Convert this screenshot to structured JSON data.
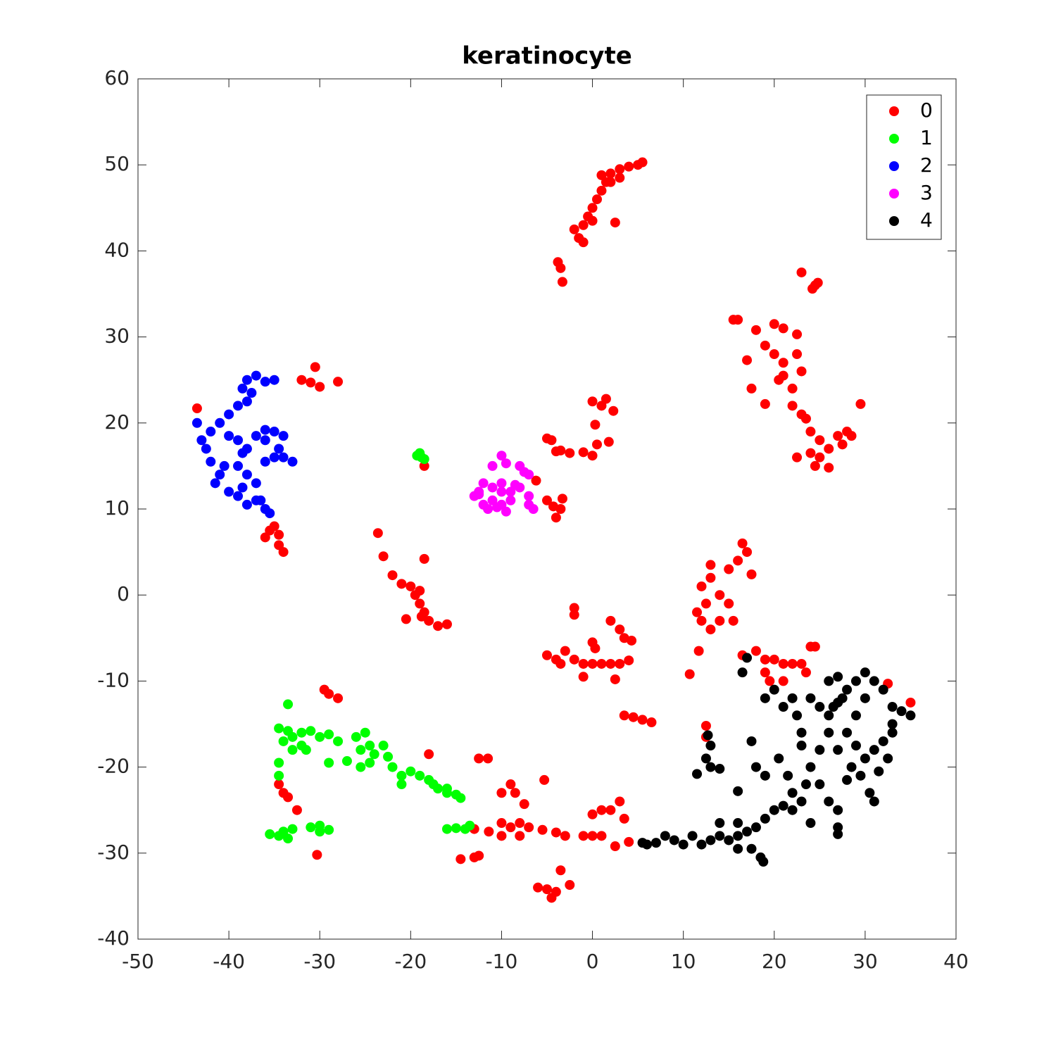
{
  "chart_data": {
    "type": "scatter",
    "title": "keratinocyte",
    "xlim": [
      -50,
      40
    ],
    "ylim": [
      -40,
      60
    ],
    "xticks": [
      -50,
      -40,
      -30,
      -20,
      -10,
      0,
      10,
      20,
      30,
      40
    ],
    "yticks": [
      -40,
      -30,
      -20,
      -10,
      0,
      10,
      20,
      30,
      40,
      50,
      60
    ],
    "legend": "upper right",
    "series": [
      {
        "name": "0",
        "color": "#ff0000",
        "x": [
          -2,
          -1.5,
          -1,
          -0.5,
          0,
          0.5,
          1,
          1.5,
          2,
          3,
          4,
          5,
          5.5,
          -1,
          0,
          2.5,
          2,
          1,
          3,
          -3.8,
          -3.5,
          -3.3,
          24.5,
          24.2,
          23,
          24.8,
          15.5,
          16,
          20,
          21,
          22.5,
          18,
          19,
          20,
          21,
          20.5,
          22,
          21,
          22.5,
          23,
          17,
          17.5,
          19,
          22,
          23,
          23.5,
          24,
          25,
          26,
          27,
          28,
          28.5,
          25,
          24.5,
          26,
          22.5,
          29.5,
          24,
          27.5,
          -28,
          -30.5,
          -32,
          -31,
          -30,
          -43.5,
          -35.5,
          -35,
          -34.5,
          -34,
          -34.5,
          -36,
          0,
          1,
          1.5,
          2.3,
          0.3,
          0.5,
          1.8,
          0,
          -1,
          -2.5,
          -4,
          -3.5,
          -5,
          -4.5,
          -6.2,
          -5,
          -3.3,
          -4,
          -3.5,
          -4.3,
          -18.5,
          -23.6,
          -23,
          -18.5,
          -22,
          -21,
          -20,
          -19.5,
          -19,
          -18.5,
          -18,
          -17,
          -16,
          -20.5,
          -19,
          -18.8,
          16.5,
          17,
          16,
          15,
          13,
          13,
          12,
          12.5,
          11.5,
          12,
          13,
          14,
          15,
          15.5,
          17.5,
          14,
          11.7,
          10.7,
          -2,
          -2,
          -5,
          -4,
          -3,
          -2,
          -1,
          0,
          -1,
          0,
          0.3,
          1,
          2,
          3,
          4,
          2.5,
          2,
          3,
          3.5,
          4.3,
          -3.5,
          16.5,
          18,
          19,
          20,
          21,
          22,
          23,
          19,
          19.5,
          21,
          23.5,
          24,
          24.5,
          32.5,
          35,
          3.5,
          4.5,
          5.5,
          6.5,
          12.5,
          12.5,
          -29.5,
          -29,
          -28,
          -34.5,
          -34,
          -33.5,
          -32.5,
          -30.3,
          -18,
          -12.5,
          -11.5,
          -10,
          -9,
          -8.5,
          -10,
          -9,
          -8,
          -7,
          -8,
          -10,
          -7.5,
          -11.4,
          -13,
          -13,
          -14.5,
          -12.5,
          -5.3,
          -5.5,
          -4,
          -3,
          -1,
          0,
          0,
          1,
          2,
          3,
          3.5,
          1,
          2.5,
          4,
          -6,
          -5,
          -4,
          -4.5,
          -2.5,
          -3.5
        ],
        "values": [
          42.5,
          41.5,
          43,
          44,
          45,
          46,
          47,
          48,
          49,
          49.5,
          49.8,
          50,
          50.3,
          41,
          43.5,
          43.3,
          48,
          48.8,
          48.5,
          38.7,
          38,
          36.4,
          36,
          35.6,
          37.5,
          36.3,
          32,
          32,
          31.5,
          31,
          30.3,
          30.8,
          29,
          28,
          27,
          25,
          24,
          25.5,
          28,
          26,
          27.3,
          24,
          22.2,
          22,
          21,
          20.5,
          19,
          18,
          17,
          18.5,
          19,
          18.5,
          16,
          15,
          14.8,
          16,
          22.2,
          16.5,
          17.5,
          24.8,
          26.5,
          25,
          24.7,
          24.2,
          21.7,
          7.5,
          8,
          7,
          5,
          5.8,
          6.7,
          22.5,
          22,
          22.8,
          21.4,
          19.8,
          17.5,
          17.8,
          16.2,
          16.6,
          16.5,
          16.7,
          16.8,
          18.2,
          18,
          13.3,
          11,
          11.2,
          9,
          10,
          10.3,
          15,
          7.2,
          4.5,
          4.2,
          2.3,
          1.3,
          1,
          0,
          -1,
          -2,
          -3,
          -3.6,
          -3.4,
          -2.8,
          0.5,
          -2.5,
          6,
          5,
          4,
          3,
          3.5,
          2,
          1,
          -1,
          -2,
          -3,
          -4,
          -3,
          -1,
          -3,
          2.4,
          0,
          -6.5,
          -9.2,
          -1.5,
          -2.3,
          -7,
          -7.5,
          -6.5,
          -7.5,
          -8,
          -8,
          -9.5,
          -5.5,
          -6.2,
          -8,
          -8,
          -8,
          -7.6,
          -9.8,
          -3,
          -4,
          -5,
          -5.3,
          -8,
          -7,
          -6.5,
          -7.5,
          -7.5,
          -8,
          -8,
          -8,
          -9,
          -10,
          -10,
          -9,
          -6,
          -6,
          -10.3,
          -12.5,
          -14,
          -14.2,
          -14.5,
          -14.8,
          -15.2,
          -16.5,
          -11,
          -11.5,
          -12,
          -22,
          -23,
          -23.5,
          -25,
          -30.2,
          -18.5,
          -19,
          -19,
          -23,
          -22,
          -23,
          -26.5,
          -27,
          -26.5,
          -27,
          -28,
          -28,
          -24.3,
          -27.5,
          -27.2,
          -30.5,
          -30.7,
          -30.3,
          -21.5,
          -27.3,
          -27.6,
          -28,
          -28,
          -28,
          -25.5,
          -25,
          -25,
          -24,
          -26,
          -28,
          -29.2,
          -28.7,
          -34,
          -34.2,
          -34.5,
          -35.2,
          -33.7,
          -32
        ]
      },
      {
        "name": "1",
        "color": "#00ff00",
        "x": [
          -19,
          -18.8,
          -18.5,
          -19.3,
          -33.5,
          -34.5,
          -33.5,
          -33,
          -32,
          -31,
          -30,
          -29,
          -28,
          -34,
          -33,
          -32,
          -31.5,
          -34.5,
          -34.5,
          -29,
          -27,
          -26,
          -25,
          -25.5,
          -24.5,
          -24,
          -23,
          -22.5,
          -22,
          -21,
          -20,
          -21,
          -19,
          -18,
          -17.5,
          -17,
          -16,
          -15,
          -14.5,
          -16,
          -25.5,
          -24.5,
          -35.5,
          -34.5,
          -34,
          -33,
          -33.5,
          -31,
          -30,
          -29,
          -30,
          -16,
          -15,
          -14,
          -13.5
        ],
        "values": [
          16.5,
          16,
          15.8,
          16.2,
          -12.7,
          -15.5,
          -15.8,
          -16.5,
          -16,
          -15.8,
          -16.5,
          -16.2,
          -17,
          -17,
          -18,
          -17.5,
          -18,
          -19.5,
          -21,
          -19.5,
          -19.3,
          -16.5,
          -16,
          -18,
          -17.5,
          -18.5,
          -17.5,
          -18.8,
          -20,
          -21,
          -20.5,
          -22,
          -21,
          -21.5,
          -22,
          -22.5,
          -23,
          -23.2,
          -23.6,
          -22.5,
          -20,
          -19.5,
          -27.8,
          -28,
          -27.5,
          -27.2,
          -28.3,
          -27,
          -26.8,
          -27.3,
          -27.5,
          -27.2,
          -27.1,
          -27.2,
          -26.8
        ]
      },
      {
        "name": "2",
        "color": "#0000ff",
        "x": [
          -43.5,
          -43,
          -42.5,
          -42,
          -41,
          -41.5,
          -40,
          -39,
          -38,
          -37,
          -36,
          -35.5,
          -36.5,
          -42,
          -41,
          -40,
          -39,
          -38.5,
          -38,
          -37,
          -36,
          -35,
          -37.5,
          -38,
          -40,
          -39,
          -38,
          -37,
          -36,
          -35,
          -34,
          -34.5,
          -35,
          -36,
          -33,
          -38,
          -39,
          -37,
          -38.5,
          -40.5,
          -36,
          -34,
          -38.5
        ],
        "values": [
          20,
          18,
          17,
          15.5,
          14,
          13,
          12,
          11.5,
          10.5,
          11,
          10,
          9.5,
          11,
          19,
          20,
          21,
          22,
          24,
          25,
          25.5,
          24.8,
          25,
          23.5,
          22.5,
          18.5,
          18,
          17,
          18.5,
          18,
          19,
          18.5,
          17,
          16,
          15.5,
          15.5,
          14,
          15,
          13,
          16.5,
          15,
          19.2,
          16,
          12.5
        ]
      },
      {
        "name": "3",
        "color": "#ff00ff",
        "x": [
          -13,
          -12.5,
          -12,
          -11,
          -10,
          -9,
          -8,
          -7,
          -6.5,
          -7,
          -9,
          -10,
          -11,
          -12,
          -11.5,
          -10.5,
          -9.5,
          -10,
          -11,
          -10,
          -9.5,
          -8,
          -7.5,
          -7,
          -8.5,
          -12.5
        ],
        "values": [
          11.5,
          12,
          13,
          12.5,
          12,
          12,
          12.5,
          11.5,
          10,
          10.5,
          11,
          10.5,
          11,
          10.5,
          10,
          10.2,
          9.7,
          13,
          15,
          16.2,
          15.3,
          15,
          14.3,
          14,
          12.8,
          11.7
        ]
      },
      {
        "name": "4",
        "color": "#000000",
        "x": [
          17,
          16.5,
          12.7,
          13,
          12.5,
          13,
          14,
          11.5,
          17.5,
          18,
          16,
          19,
          19,
          20,
          21,
          22,
          22.5,
          23,
          23,
          20.5,
          21.5,
          22,
          23,
          21,
          20,
          19,
          18,
          17,
          16,
          15,
          14,
          13,
          12,
          11,
          10,
          9,
          8,
          7,
          6,
          5.5,
          14,
          16,
          18.5,
          18.8,
          17.5,
          16,
          24,
          25,
          26,
          27,
          28,
          29,
          30,
          31,
          32,
          33,
          34,
          35,
          30,
          29,
          28,
          27,
          28.5,
          29.5,
          30.5,
          31,
          30,
          31,
          32,
          33,
          32.5,
          31.5,
          26,
          25,
          24,
          25,
          26,
          27,
          27,
          27,
          24,
          23.5,
          22,
          26.5,
          27.5,
          29,
          28,
          33,
          26,
          27
        ],
        "values": [
          -7.3,
          -9,
          -16.3,
          -17.5,
          -19,
          -20,
          -20.2,
          -20.8,
          -17,
          -20,
          -22.8,
          -21,
          -12,
          -11,
          -13,
          -12,
          -14,
          -16,
          -17.5,
          -19,
          -21,
          -23,
          -24,
          -24.5,
          -25,
          -26,
          -27,
          -27.5,
          -28,
          -28.5,
          -28,
          -28.5,
          -29,
          -28,
          -29,
          -28.5,
          -28,
          -28.8,
          -29,
          -28.8,
          -26.5,
          -26.5,
          -30.5,
          -31,
          -29.5,
          -29.5,
          -12,
          -13,
          -14,
          -12.5,
          -11,
          -10,
          -9,
          -10,
          -11,
          -13,
          -13.5,
          -14,
          -12,
          -14,
          -16,
          -18,
          -20,
          -21,
          -23,
          -24,
          -19,
          -18,
          -17,
          -16,
          -19,
          -20.5,
          -16,
          -18,
          -20,
          -22,
          -24,
          -25,
          -27,
          -27.8,
          -26.5,
          -22,
          -25,
          -13,
          -12,
          -17.5,
          -21.5,
          -15,
          -10,
          -9.5
        ]
      }
    ]
  }
}
